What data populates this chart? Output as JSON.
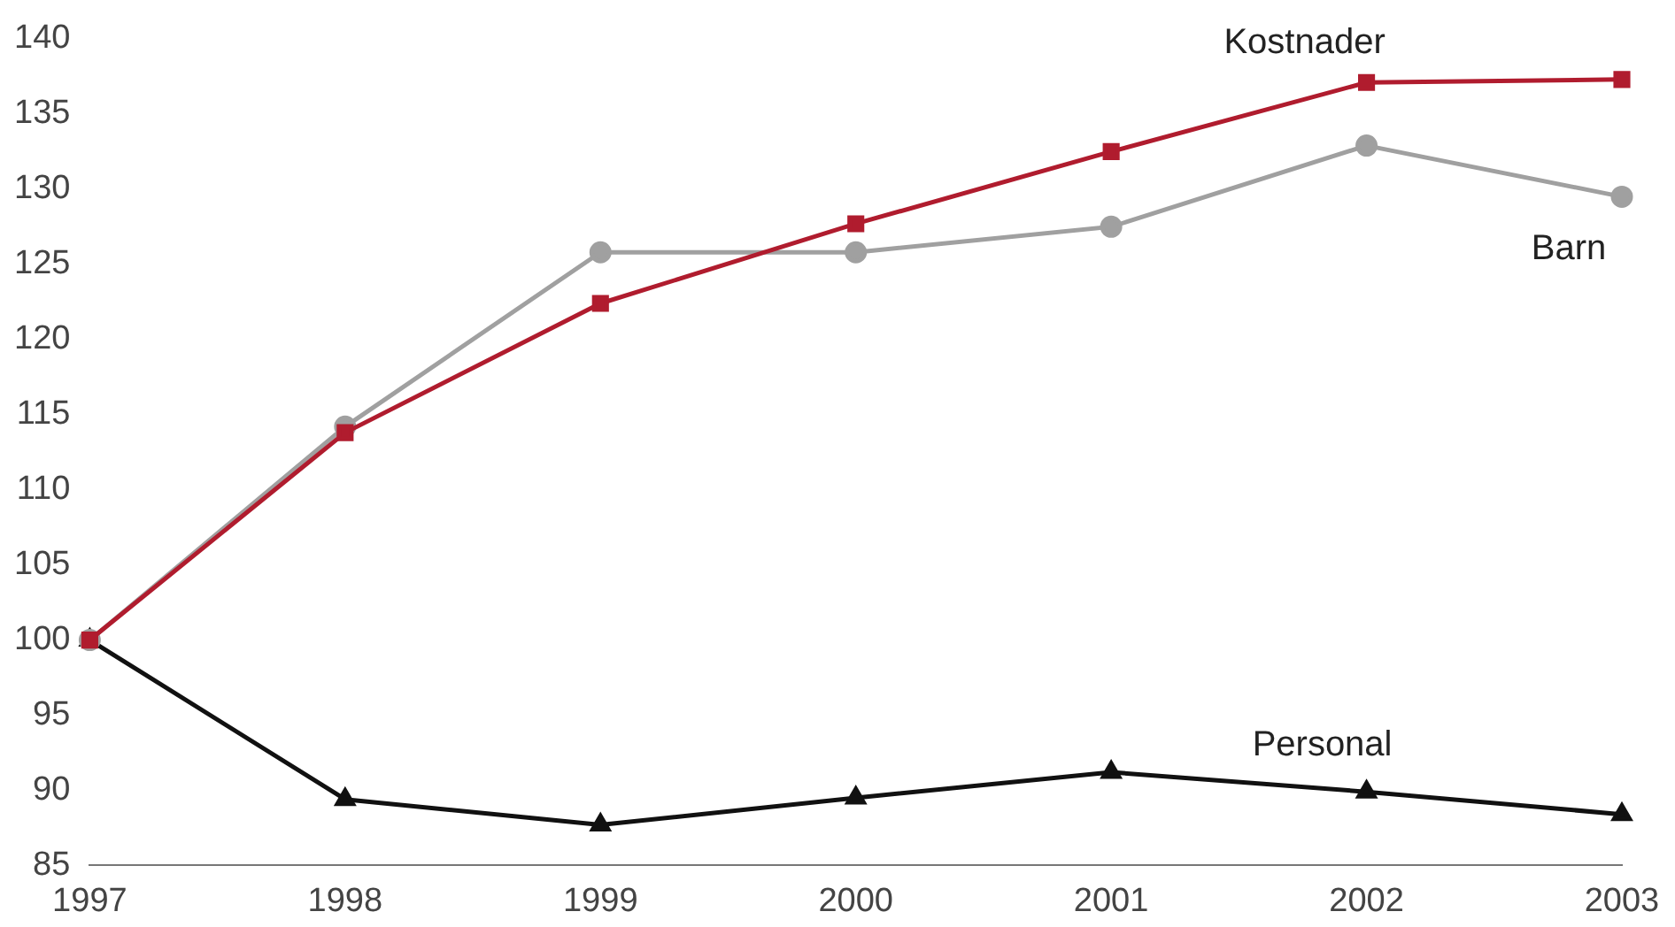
{
  "chart_data": {
    "type": "line",
    "categories": [
      "1997",
      "1998",
      "1999",
      "2000",
      "2001",
      "2002",
      "2003"
    ],
    "ylim": [
      85,
      140
    ],
    "yticks": [
      85,
      90,
      95,
      100,
      105,
      110,
      115,
      120,
      125,
      130,
      135,
      140
    ],
    "grid": false,
    "legend": false,
    "series": [
      {
        "name": "Kostnader",
        "color": "#b01c2e",
        "marker": "square",
        "values": [
          100,
          113.8,
          122.4,
          127.7,
          132.5,
          137.1,
          137.3
        ]
      },
      {
        "name": "Barn",
        "color": "#a0a0a0",
        "marker": "circle",
        "values": [
          100,
          114.2,
          125.8,
          125.8,
          127.5,
          132.9,
          129.5
        ]
      },
      {
        "name": "Personal",
        "color": "#111111",
        "marker": "triangle",
        "values": [
          100,
          89.4,
          87.7,
          89.5,
          91.2,
          89.9,
          88.4
        ]
      }
    ]
  }
}
